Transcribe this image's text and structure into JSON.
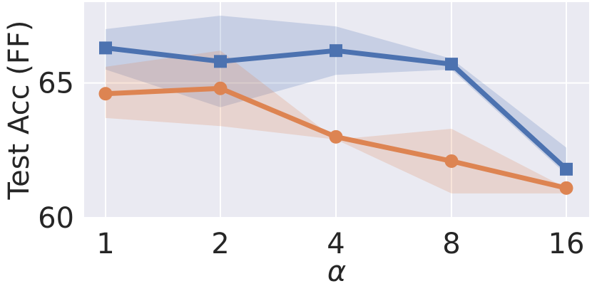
{
  "chart_data": {
    "type": "line",
    "x": [
      "1",
      "2",
      "4",
      "8",
      "16"
    ],
    "xlabel": "α",
    "ylabel": "Test Acc (FF)",
    "ylim": [
      60,
      68.0
    ],
    "yticks": [
      60,
      65
    ],
    "grid": true,
    "legend": "none",
    "background": "#eaeaf2",
    "series": [
      {
        "color": "#4c72b0",
        "marker": "square",
        "values": [
          66.3,
          65.8,
          66.2,
          65.7,
          61.8
        ],
        "band_low": [
          65.5,
          64.1,
          65.3,
          65.5,
          61.6
        ],
        "band_high": [
          67.0,
          67.5,
          67.1,
          65.9,
          62.6
        ]
      },
      {
        "color": "#dd8452",
        "marker": "circle",
        "values": [
          64.6,
          64.8,
          63.0,
          62.1,
          61.1
        ],
        "band_low": [
          63.7,
          63.4,
          62.9,
          60.9,
          60.9
        ],
        "band_high": [
          65.6,
          66.2,
          62.9,
          63.3,
          61.1
        ]
      }
    ]
  }
}
